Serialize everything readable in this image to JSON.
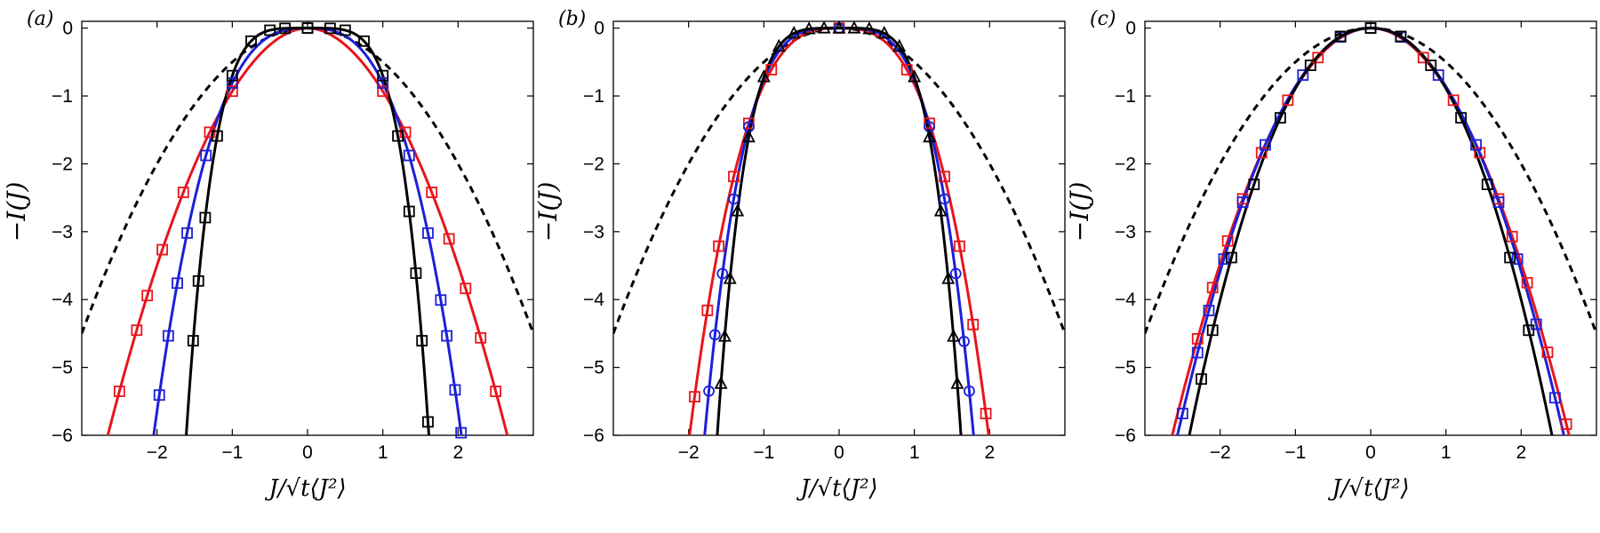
{
  "figure": {
    "panel_labels": [
      "(a)",
      "(b)",
      "(c)"
    ],
    "ylabel": "−I(J)",
    "xlabel": "J/√t⟨J²⟩"
  },
  "colors": {
    "red": "#e8151b",
    "blue": "#1c20d8",
    "black": "#000000",
    "gaussian": "#000000"
  },
  "chart_data": [
    {
      "type": "line",
      "panel": "(a)",
      "xlim": [
        -3,
        3
      ],
      "ylim": [
        -6,
        0.1
      ],
      "xticks": [
        -2,
        -1,
        0,
        1,
        2
      ],
      "yticks": [
        0,
        -1,
        -2,
        -3,
        -4,
        -5,
        -6
      ],
      "xlabel": "J/√t⟨J²⟩",
      "ylabel": "−I(J)",
      "grid": false,
      "gaussian_reference": {
        "style": "dashed",
        "color": "black",
        "coef": 0.5
      },
      "series": [
        {
          "color": "red",
          "marker": "square",
          "coef": 0.93,
          "power": 1.91,
          "points_x": [
            -2.5,
            -2.27,
            -2.13,
            -1.93,
            -1.65,
            -1.3,
            -1.0,
            0,
            1.0,
            1.3,
            1.65,
            1.88,
            2.1,
            2.3,
            2.5
          ]
        },
        {
          "color": "blue",
          "marker": "square",
          "coef": 0.81,
          "power": 2.8,
          "points_x": [
            -2.05,
            -1.97,
            -1.85,
            -1.73,
            -1.6,
            -1.35,
            -1.0,
            0,
            1.0,
            1.35,
            1.6,
            1.77,
            1.85,
            1.96,
            2.04
          ]
        },
        {
          "color": "black",
          "marker": "square",
          "coef": 0.7,
          "power": 4.5,
          "points_x": [
            -1.64,
            -1.52,
            -1.45,
            -1.36,
            -1.2,
            -1.0,
            -0.75,
            -0.5,
            -0.3,
            0,
            0.3,
            0.5,
            0.75,
            1.0,
            1.2,
            1.35,
            1.44,
            1.52,
            1.6
          ]
        }
      ]
    },
    {
      "type": "line",
      "panel": "(b)",
      "xlim": [
        -3,
        3
      ],
      "ylim": [
        -6,
        0.1
      ],
      "xticks": [
        -2,
        -1,
        0,
        1,
        2
      ],
      "yticks": [
        0,
        -1,
        -2,
        -3,
        -4,
        -5,
        -6
      ],
      "xlabel": "J/√t⟨J²⟩",
      "ylabel": "−I(J)",
      "grid": false,
      "gaussian_reference": {
        "style": "dashed",
        "color": "black",
        "coef": 0.5
      },
      "series": [
        {
          "color": "red",
          "marker": "square",
          "coef": 0.83,
          "power": 2.88,
          "points_x": [
            -2.08,
            -1.92,
            -1.75,
            -1.6,
            -1.4,
            -1.2,
            -0.9,
            0,
            0.9,
            1.2,
            1.4,
            1.6,
            1.78,
            1.95,
            2.1
          ]
        },
        {
          "color": "blue",
          "marker": "circle",
          "coef": 0.76,
          "power": 3.56,
          "points_x": [
            -1.8,
            -1.73,
            -1.65,
            -1.55,
            -1.4,
            -1.2,
            0,
            1.2,
            1.4,
            1.55,
            1.66,
            1.73,
            1.8
          ]
        },
        {
          "color": "black",
          "marker": "triangle",
          "coef": 0.72,
          "power": 4.4,
          "points_x": [
            -1.62,
            -1.57,
            -1.52,
            -1.45,
            -1.35,
            -1.2,
            -1.0,
            -0.8,
            -0.6,
            -0.4,
            -0.2,
            0,
            0.2,
            0.4,
            0.6,
            0.8,
            1.0,
            1.2,
            1.35,
            1.45,
            1.52,
            1.57,
            1.62
          ]
        }
      ]
    },
    {
      "type": "line",
      "panel": "(c)",
      "xlim": [
        -3,
        3
      ],
      "ylim": [
        -6,
        0.1
      ],
      "xticks": [
        -2,
        -1,
        0,
        1,
        2
      ],
      "yticks": [
        0,
        -1,
        -2,
        -3,
        -4,
        -5,
        -6
      ],
      "xlabel": "J/√t⟨J²⟩",
      "ylabel": "−I(J)",
      "grid": false,
      "gaussian_reference": {
        "style": "dashed",
        "color": "black",
        "coef": 0.5
      },
      "series": [
        {
          "color": "red",
          "marker": "square",
          "coef": 0.88,
          "power": 1.98,
          "points_x": [
            -2.65,
            -2.3,
            -2.1,
            -1.9,
            -1.7,
            -1.45,
            -1.1,
            -0.7,
            0,
            0.7,
            1.1,
            1.45,
            1.7,
            1.88,
            2.08,
            2.35,
            2.6
          ]
        },
        {
          "color": "blue",
          "marker": "square",
          "coef": 0.86,
          "power": 2.06,
          "points_x": [
            -2.5,
            -2.3,
            -2.15,
            -1.95,
            -1.7,
            -1.4,
            -0.9,
            -0.4,
            0,
            0.4,
            0.9,
            1.4,
            1.7,
            1.95,
            2.2,
            2.45
          ]
        },
        {
          "color": "black",
          "marker": "square",
          "coef": 0.89,
          "power": 2.17,
          "points_x": [
            -2.25,
            -2.1,
            -1.85,
            -1.55,
            -1.2,
            -0.8,
            -0.4,
            0,
            0.4,
            0.8,
            1.2,
            1.55,
            1.85,
            2.1
          ]
        }
      ]
    }
  ]
}
